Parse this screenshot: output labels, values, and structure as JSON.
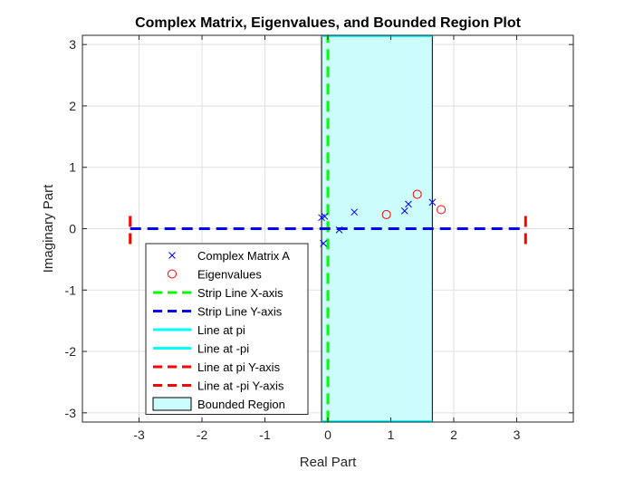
{
  "chart_data": {
    "type": "scatter",
    "title": "Complex Matrix, Eigenvalues, and Bounded Region Plot",
    "xlabel": "Real Part",
    "ylabel": "Imaginary Part",
    "xlim": [
      -3.9,
      3.9
    ],
    "ylim": [
      -3.15,
      3.15
    ],
    "xticks": [
      -3,
      -2,
      -1,
      0,
      1,
      2,
      3
    ],
    "yticks": [
      -3,
      -2,
      -1,
      0,
      1,
      2,
      3
    ],
    "grid": true,
    "legend_position": "lower-left",
    "series": [
      {
        "name": "Complex Matrix A",
        "marker": "x",
        "color": "#0000ff",
        "points": [
          {
            "x": -0.1,
            "y": 0.18
          },
          {
            "x": -0.05,
            "y": 0.2
          },
          {
            "x": -0.07,
            "y": -0.24
          },
          {
            "x": 0.18,
            "y": -0.02
          },
          {
            "x": 0.42,
            "y": 0.27
          },
          {
            "x": 1.22,
            "y": 0.29
          },
          {
            "x": 1.28,
            "y": 0.4
          },
          {
            "x": 1.66,
            "y": 0.43
          }
        ]
      },
      {
        "name": "Eigenvalues",
        "marker": "o",
        "color": "#ff0000",
        "points": [
          {
            "x": 0.93,
            "y": 0.23
          },
          {
            "x": 1.42,
            "y": 0.56
          },
          {
            "x": 1.8,
            "y": 0.31
          }
        ]
      },
      {
        "name": "Strip Line X-axis",
        "style": "dashed",
        "color": "#00ff00",
        "points": [
          {
            "x": 0,
            "y": -3.14159
          },
          {
            "x": 0,
            "y": 3.14159
          }
        ]
      },
      {
        "name": "Strip Line Y-axis",
        "style": "dashed",
        "color": "#0000ff",
        "points": [
          {
            "x": -3.14159,
            "y": 0
          },
          {
            "x": 3.14159,
            "y": 0
          }
        ]
      },
      {
        "name": "Line at pi",
        "style": "solid",
        "color": "#00ffff",
        "points": [
          {
            "x": -0.1,
            "y": 3.14159
          },
          {
            "x": 1.66,
            "y": 3.14159
          }
        ]
      },
      {
        "name": "Line at -pi",
        "style": "solid",
        "color": "#00ffff",
        "points": [
          {
            "x": -0.1,
            "y": -3.14159
          },
          {
            "x": 1.66,
            "y": -3.14159
          }
        ]
      },
      {
        "name": "Line at pi Y-axis",
        "style": "dashed",
        "color": "#ff0000",
        "points": [
          {
            "x": 3.14159,
            "y": -0.25
          },
          {
            "x": 3.14159,
            "y": 0.25
          }
        ]
      },
      {
        "name": "Line at -pi Y-axis",
        "style": "dashed",
        "color": "#ff0000",
        "points": [
          {
            "x": -3.14159,
            "y": -0.25
          },
          {
            "x": -3.14159,
            "y": 0.25
          }
        ]
      },
      {
        "name": "Bounded Region",
        "style": "fill",
        "color": "#ccfcfc",
        "points": [
          {
            "x": -0.1,
            "y": -3.14159
          },
          {
            "x": 1.66,
            "y": 3.14159
          }
        ]
      }
    ]
  }
}
